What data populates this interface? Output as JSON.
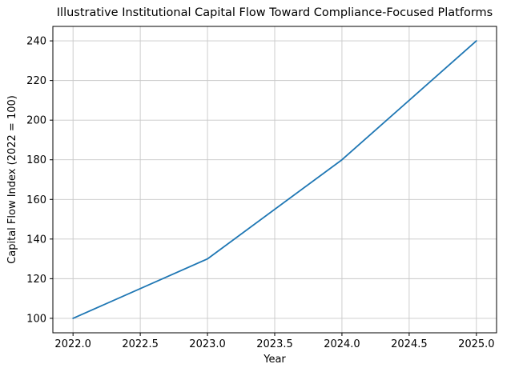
{
  "page": {
    "background": "#ffffff"
  },
  "chart_data": {
    "type": "line",
    "title": "Illustrative Institutional Capital Flow Toward Compliance-Focused Platforms",
    "xlabel": "Year",
    "ylabel": "Capital Flow Index (2022 = 100)",
    "x": [
      2022,
      2023,
      2024,
      2025
    ],
    "values": [
      100,
      130,
      180,
      240
    ],
    "xticks": [
      2022.0,
      2022.5,
      2023.0,
      2023.5,
      2024.0,
      2024.5,
      2025.0
    ],
    "xtick_labels": [
      "2022.0",
      "2022.5",
      "2023.0",
      "2023.5",
      "2024.0",
      "2024.5",
      "2025.0"
    ],
    "yticks": [
      100,
      120,
      140,
      160,
      180,
      200,
      220,
      240
    ],
    "ytick_labels": [
      "100",
      "120",
      "140",
      "160",
      "180",
      "200",
      "220",
      "240"
    ],
    "xlim": [
      2021.85,
      2025.15
    ],
    "ylim": [
      92.7,
      247.3
    ],
    "grid": true,
    "legend_position": "none",
    "line_color": "#1f77b4",
    "grid_color": "#c8c8c8",
    "axis_color": "#000000",
    "text_color": "#000000"
  }
}
